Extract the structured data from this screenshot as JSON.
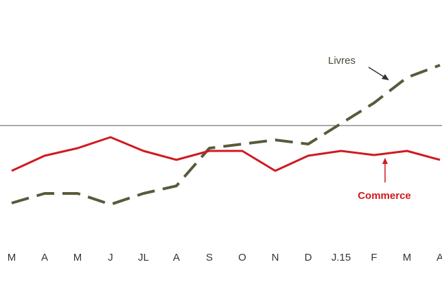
{
  "chart_data": {
    "type": "line",
    "categories": [
      "M",
      "A",
      "M",
      "J",
      "JL",
      "A",
      "S",
      "O",
      "N",
      "D",
      "J.15",
      "F",
      "M",
      "A"
    ],
    "series": [
      {
        "name": "Livres",
        "color": "#5a5a3c",
        "dashed": true,
        "values": [
          -11.3,
          -9.9,
          -9.9,
          -11.5,
          -9.9,
          -8.8,
          -3.3,
          -2.7,
          -2.1,
          -2.7,
          0.3,
          3.3,
          7.0,
          8.8
        ]
      },
      {
        "name": "Commerce",
        "color": "#d0191e",
        "dashed": false,
        "values": [
          -6.6,
          -4.4,
          -3.3,
          -1.7,
          -3.7,
          -5.0,
          -3.7,
          -3.7,
          -6.6,
          -4.4,
          -3.7,
          -4.3,
          -3.7,
          -5.0
        ]
      }
    ],
    "ylim": [
      -16,
      18
    ]
  }
}
